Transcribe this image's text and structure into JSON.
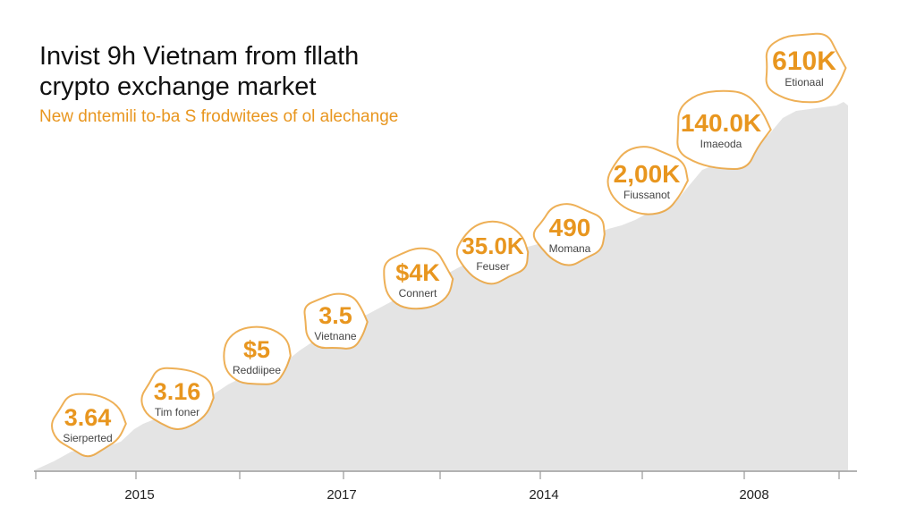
{
  "title_lines": [
    "Invist 9h Vietnam from fllath",
    "crypto exchange market"
  ],
  "subtitle": "New dntemili to-ba S frodwitees of ol alechange",
  "colors": {
    "accent": "#e8961f",
    "area": "#e4e4e4",
    "text": "#111111"
  },
  "chart_data": {
    "type": "area",
    "title": "Invist 9h Vietnam from fllath crypto exchange market",
    "subtitle": "New dntemili to-ba S frodwitees of ol alechange",
    "x_tick_labels": [
      "2015",
      "2017",
      "2014",
      "2008"
    ],
    "grid": false,
    "annotations": [
      {
        "value": "3.64",
        "label": "Sierperted"
      },
      {
        "value": "3.16",
        "label": "Tim foner"
      },
      {
        "value": "$5",
        "label": "Reddiipee"
      },
      {
        "value": "3.5",
        "label": "Vietnane"
      },
      {
        "value": "$4K",
        "label": "Connert"
      },
      {
        "value": "35.0K",
        "label": "Feuser"
      },
      {
        "value": "490",
        "label": "Momana"
      },
      {
        "value": "2,00K",
        "label": "Fiussanot"
      },
      {
        "value": "140.0K",
        "label": "Imaeoda"
      },
      {
        "value": "610K",
        "label": "Etionaal"
      }
    ]
  }
}
